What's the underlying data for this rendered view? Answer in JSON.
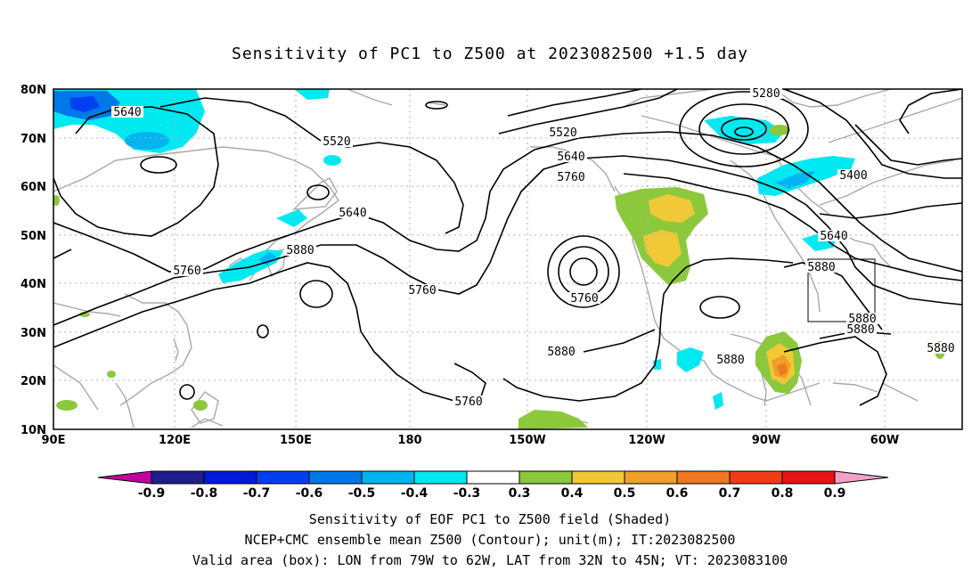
{
  "title": "Sensitivity of PC1 to Z500 at 2023082500 +1.5 day",
  "lat_labels": [
    "80N",
    "70N",
    "60N",
    "50N",
    "40N",
    "30N",
    "20N",
    "10N"
  ],
  "lon_labels": [
    "90E",
    "120E",
    "150E",
    "180",
    "150W",
    "120W",
    "90W",
    "60W"
  ],
  "contour_labels": [
    "5280",
    "5640",
    "5520",
    "5520",
    "5640",
    "5760",
    "5400",
    "5640",
    "5640",
    "5760",
    "5880",
    "5760",
    "5760",
    "5880",
    "5880",
    "5880",
    "5880",
    "5880",
    "5760",
    "5880"
  ],
  "colorbar": {
    "labels": [
      "-0.9",
      "-0.8",
      "-0.7",
      "-0.6",
      "-0.5",
      "-0.4",
      "-0.3",
      "0.3",
      "0.4",
      "0.5",
      "0.6",
      "0.7",
      "0.8",
      "0.9"
    ],
    "colors": [
      "#c000a0",
      "#1e1e8c",
      "#0018d8",
      "#0040f0",
      "#0078e8",
      "#00b4f0",
      "#00e8f0",
      "#ffffff",
      "#8cc83c",
      "#f0c838",
      "#f0a028",
      "#f07820",
      "#f03c14",
      "#e81414",
      "#f4a0c8"
    ]
  },
  "captions": {
    "line1": "Sensitivity of EOF PC1 to Z500 field (Shaded)",
    "line2": "NCEP+CMC ensemble mean Z500 (Contour); unit(m); IT:2023082500",
    "line3": "Valid area (box): LON from 79W to 62W, LAT from 32N to 45N; VT: 2023083100"
  }
}
